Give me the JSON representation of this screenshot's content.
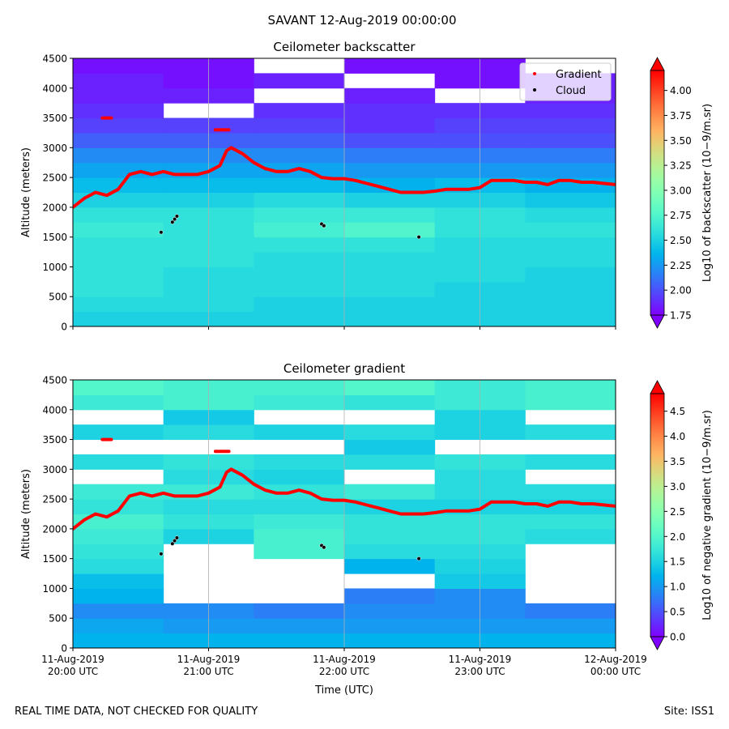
{
  "title": "SAVANT 12-Aug-2019 00:00:00",
  "footer_left": "REAL TIME DATA, NOT CHECKED FOR QUALITY",
  "footer_right": "Site: ISS1",
  "chart_data": [
    {
      "type": "heatmap-scatter",
      "title": "Ceilometer backscatter",
      "ylabel": "Altitude (meters)",
      "xlim": [
        "2019-08-11T20:00",
        "2019-08-12T00:00"
      ],
      "xticks": [
        "2019-08-11T20:00",
        "2019-08-11T21:00",
        "2019-08-11T22:00",
        "2019-08-11T23:00",
        "2019-08-12T00:00"
      ],
      "ylim": [
        0,
        4500
      ],
      "yticks": [
        0,
        500,
        1000,
        1500,
        2000,
        2500,
        3000,
        3500,
        4000,
        4500
      ],
      "grid": "x",
      "colormap": "rainbow",
      "legend": "upper right",
      "colorbar_label": "Log10 of backscatter (10−9/m.sr)",
      "clim": [
        1.75,
        4.2
      ],
      "cticks": [
        {
          "value": 1.75,
          "label": "1.75"
        },
        {
          "value": 2,
          "label": "2.00"
        },
        {
          "value": 2.25,
          "label": "2.25"
        },
        {
          "value": 2.5,
          "label": "2.50"
        },
        {
          "value": 2.75,
          "label": "2.75"
        },
        {
          "value": 3,
          "label": "3.00"
        },
        {
          "value": 3.25,
          "label": "3.25"
        },
        {
          "value": 3.5,
          "label": "3.50"
        },
        {
          "value": 3.75,
          "label": "3.75"
        },
        {
          "value": 4,
          "label": "4.00"
        }
      ],
      "field": {
        "x_edges": [
          "2019-08-11T20:00",
          "2019-08-11T20:40",
          "2019-08-11T21:20",
          "2019-08-11T22:00",
          "2019-08-11T22:40",
          "2019-08-11T23:20",
          "2019-08-12T00:00"
        ],
        "y_edges": [
          0,
          250,
          500,
          750,
          1000,
          1250,
          1500,
          1750,
          2000,
          2250,
          2500,
          2750,
          3000,
          3250,
          3500,
          3750,
          4000,
          4250,
          4500
        ],
        "values": [
          [
            2.5,
            2.5,
            2.5,
            2.5,
            2.5,
            2.5
          ],
          [
            2.55,
            2.55,
            2.5,
            2.5,
            2.5,
            2.5
          ],
          [
            2.6,
            2.55,
            2.55,
            2.55,
            2.5,
            2.5
          ],
          [
            2.6,
            2.55,
            2.55,
            2.55,
            2.55,
            2.5
          ],
          [
            2.6,
            2.6,
            2.55,
            2.55,
            2.55,
            2.55
          ],
          [
            2.6,
            2.6,
            2.6,
            2.6,
            2.55,
            2.55
          ],
          [
            2.65,
            2.6,
            2.7,
            2.75,
            2.6,
            2.6
          ],
          [
            2.6,
            2.6,
            2.65,
            2.65,
            2.6,
            2.55
          ],
          [
            2.5,
            2.5,
            2.55,
            2.5,
            2.5,
            2.45
          ],
          [
            2.4,
            2.4,
            2.4,
            2.35,
            2.4,
            2.35
          ],
          [
            2.3,
            2.3,
            2.3,
            2.25,
            2.25,
            2.25
          ],
          [
            2.2,
            2.2,
            2.2,
            2.15,
            2.15,
            2.15
          ],
          [
            2.05,
            2.05,
            2.05,
            2.0,
            2.0,
            2.0
          ],
          [
            1.95,
            1.95,
            1.95,
            1.9,
            1.95,
            1.95
          ],
          [
            1.9,
            null,
            1.9,
            1.9,
            1.9,
            1.9
          ],
          [
            1.85,
            1.85,
            null,
            1.85,
            null,
            1.85
          ],
          [
            1.85,
            1.8,
            1.85,
            null,
            1.8,
            1.85
          ],
          [
            1.8,
            1.8,
            null,
            1.8,
            1.8,
            null
          ]
        ]
      },
      "series": [
        {
          "name": "Gradient",
          "color": "#ff0000",
          "x": [
            "2019-08-11T20:00",
            "2019-08-11T20:05",
            "2019-08-11T20:10",
            "2019-08-11T20:15",
            "2019-08-11T20:20",
            "2019-08-11T20:25",
            "2019-08-11T20:30",
            "2019-08-11T20:35",
            "2019-08-11T20:40",
            "2019-08-11T20:45",
            "2019-08-11T20:50",
            "2019-08-11T20:55",
            "2019-08-11T21:00",
            "2019-08-11T21:05",
            "2019-08-11T21:08",
            "2019-08-11T21:10",
            "2019-08-11T21:15",
            "2019-08-11T21:20",
            "2019-08-11T21:25",
            "2019-08-11T21:30",
            "2019-08-11T21:35",
            "2019-08-11T21:40",
            "2019-08-11T21:45",
            "2019-08-11T21:50",
            "2019-08-11T21:55",
            "2019-08-11T22:00",
            "2019-08-11T22:05",
            "2019-08-11T22:10",
            "2019-08-11T22:15",
            "2019-08-11T22:20",
            "2019-08-11T22:25",
            "2019-08-11T22:30",
            "2019-08-11T22:35",
            "2019-08-11T22:40",
            "2019-08-11T22:45",
            "2019-08-11T22:50",
            "2019-08-11T22:55",
            "2019-08-11T23:00",
            "2019-08-11T23:05",
            "2019-08-11T23:10",
            "2019-08-11T23:15",
            "2019-08-11T23:20",
            "2019-08-11T23:25",
            "2019-08-11T23:30",
            "2019-08-11T23:35",
            "2019-08-11T23:40",
            "2019-08-11T23:45",
            "2019-08-11T23:50",
            "2019-08-11T23:55",
            "2019-08-12T00:00",
            null,
            "2019-08-11T20:13",
            "2019-08-11T20:17",
            null,
            "2019-08-11T21:03",
            "2019-08-11T21:09"
          ],
          "values": [
            2000,
            2150,
            2250,
            2200,
            2300,
            2550,
            2600,
            2550,
            2600,
            2550,
            2550,
            2550,
            2600,
            2700,
            2950,
            3000,
            2900,
            2750,
            2650,
            2600,
            2600,
            2650,
            2600,
            2500,
            2480,
            2480,
            2450,
            2400,
            2350,
            2300,
            2250,
            2250,
            2250,
            2270,
            2300,
            2300,
            2300,
            2330,
            2450,
            2450,
            2450,
            2420,
            2420,
            2380,
            2450,
            2450,
            2420,
            2420,
            2400,
            2380,
            null,
            3500,
            3500,
            null,
            3300,
            3300
          ]
        },
        {
          "name": "Cloud",
          "color": "#000000",
          "x": [
            "2019-08-11T20:39",
            "2019-08-11T20:44",
            "2019-08-11T20:45",
            "2019-08-11T20:46",
            "2019-08-11T21:50",
            "2019-08-11T21:51",
            "2019-08-11T22:33"
          ],
          "values": [
            1580,
            1750,
            1800,
            1850,
            1720,
            1690,
            1500
          ]
        }
      ]
    },
    {
      "type": "heatmap-scatter",
      "title": "Ceilometer gradient",
      "ylabel": "Altitude (meters)",
      "xlabel": "Time (UTC)",
      "xlim": [
        "2019-08-11T20:00",
        "2019-08-12T00:00"
      ],
      "xticks": [
        {
          "value": "2019-08-11T20:00",
          "label": "11-Aug-2019\n20:00 UTC"
        },
        {
          "value": "2019-08-11T21:00",
          "label": "11-Aug-2019\n21:00 UTC"
        },
        {
          "value": "2019-08-11T22:00",
          "label": "11-Aug-2019\n22:00 UTC"
        },
        {
          "value": "2019-08-11T23:00",
          "label": "11-Aug-2019\n23:00 UTC"
        },
        {
          "value": "2019-08-12T00:00",
          "label": "12-Aug-2019\n00:00 UTC"
        }
      ],
      "ylim": [
        0,
        4500
      ],
      "yticks": [
        0,
        500,
        1000,
        1500,
        2000,
        2500,
        3000,
        3500,
        4000,
        4500
      ],
      "grid": "x",
      "colormap": "rainbow",
      "colorbar_label": "Log10 of negative gradient (10−9/m.sr)",
      "clim": [
        0,
        4.85
      ],
      "cticks": [
        {
          "value": 0,
          "label": "0.0"
        },
        {
          "value": 0.5,
          "label": "0.5"
        },
        {
          "value": 1,
          "label": "1.0"
        },
        {
          "value": 1.5,
          "label": "1.5"
        },
        {
          "value": 2,
          "label": "2.0"
        },
        {
          "value": 2.5,
          "label": "2.5"
        },
        {
          "value": 3,
          "label": "3.0"
        },
        {
          "value": 3.5,
          "label": "3.5"
        },
        {
          "value": 4,
          "label": "4.0"
        },
        {
          "value": 4.5,
          "label": "4.5"
        }
      ],
      "field": {
        "x_edges": [
          "2019-08-11T20:00",
          "2019-08-11T20:40",
          "2019-08-11T21:20",
          "2019-08-11T22:00",
          "2019-08-11T22:40",
          "2019-08-11T23:20",
          "2019-08-12T00:00"
        ],
        "y_edges": [
          0,
          250,
          500,
          750,
          1000,
          1250,
          1500,
          1750,
          2000,
          2250,
          2500,
          2750,
          3000,
          3250,
          3500,
          3750,
          4000,
          4250,
          4500
        ],
        "values": [
          [
            1.2,
            1.2,
            1.2,
            1.2,
            1.2,
            1.2
          ],
          [
            1.1,
            1.0,
            1.0,
            1.0,
            1.0,
            1.0
          ],
          [
            0.9,
            0.9,
            0.8,
            0.9,
            0.9,
            0.8
          ],
          [
            1.2,
            null,
            null,
            0.8,
            0.9,
            null
          ],
          [
            1.3,
            null,
            null,
            null,
            1.4,
            null
          ],
          [
            1.6,
            null,
            null,
            1.2,
            1.5,
            null
          ],
          [
            1.7,
            null,
            1.9,
            1.6,
            1.6,
            null
          ],
          [
            1.8,
            1.5,
            1.9,
            1.7,
            1.7,
            1.6
          ],
          [
            1.9,
            1.7,
            1.8,
            1.7,
            1.7,
            1.7
          ],
          [
            1.7,
            1.6,
            1.6,
            1.5,
            1.5,
            1.5
          ],
          [
            1.8,
            1.8,
            1.7,
            1.8,
            1.6,
            1.6
          ],
          [
            null,
            1.6,
            1.5,
            null,
            1.6,
            null
          ],
          [
            1.6,
            1.7,
            1.6,
            1.6,
            1.7,
            1.6
          ],
          [
            null,
            null,
            null,
            1.4,
            null,
            null
          ],
          [
            1.5,
            1.6,
            1.5,
            1.6,
            1.5,
            1.6
          ],
          [
            null,
            1.4,
            null,
            null,
            1.5,
            null
          ],
          [
            1.8,
            1.9,
            1.8,
            1.7,
            1.8,
            1.9
          ],
          [
            2.0,
            1.9,
            1.9,
            2.0,
            1.8,
            1.9
          ]
        ]
      },
      "series": [
        {
          "name": "Gradient",
          "color": "#ff0000",
          "x": [
            "2019-08-11T20:00",
            "2019-08-11T20:05",
            "2019-08-11T20:10",
            "2019-08-11T20:15",
            "2019-08-11T20:20",
            "2019-08-11T20:25",
            "2019-08-11T20:30",
            "2019-08-11T20:35",
            "2019-08-11T20:40",
            "2019-08-11T20:45",
            "2019-08-11T20:50",
            "2019-08-11T20:55",
            "2019-08-11T21:00",
            "2019-08-11T21:05",
            "2019-08-11T21:08",
            "2019-08-11T21:10",
            "2019-08-11T21:15",
            "2019-08-11T21:20",
            "2019-08-11T21:25",
            "2019-08-11T21:30",
            "2019-08-11T21:35",
            "2019-08-11T21:40",
            "2019-08-11T21:45",
            "2019-08-11T21:50",
            "2019-08-11T21:55",
            "2019-08-11T22:00",
            "2019-08-11T22:05",
            "2019-08-11T22:10",
            "2019-08-11T22:15",
            "2019-08-11T22:20",
            "2019-08-11T22:25",
            "2019-08-11T22:30",
            "2019-08-11T22:35",
            "2019-08-11T22:40",
            "2019-08-11T22:45",
            "2019-08-11T22:50",
            "2019-08-11T22:55",
            "2019-08-11T23:00",
            "2019-08-11T23:05",
            "2019-08-11T23:10",
            "2019-08-11T23:15",
            "2019-08-11T23:20",
            "2019-08-11T23:25",
            "2019-08-11T23:30",
            "2019-08-11T23:35",
            "2019-08-11T23:40",
            "2019-08-11T23:45",
            "2019-08-11T23:50",
            "2019-08-11T23:55",
            "2019-08-12T00:00",
            null,
            "2019-08-11T20:13",
            "2019-08-11T20:17",
            null,
            "2019-08-11T21:03",
            "2019-08-11T21:09"
          ],
          "values": [
            2000,
            2150,
            2250,
            2200,
            2300,
            2550,
            2600,
            2550,
            2600,
            2550,
            2550,
            2550,
            2600,
            2700,
            2950,
            3000,
            2900,
            2750,
            2650,
            2600,
            2600,
            2650,
            2600,
            2500,
            2480,
            2480,
            2450,
            2400,
            2350,
            2300,
            2250,
            2250,
            2250,
            2270,
            2300,
            2300,
            2300,
            2330,
            2450,
            2450,
            2450,
            2420,
            2420,
            2380,
            2450,
            2450,
            2420,
            2420,
            2400,
            2380,
            null,
            3500,
            3500,
            null,
            3300,
            3300
          ]
        },
        {
          "name": "Cloud",
          "color": "#000000",
          "x": [
            "2019-08-11T20:39",
            "2019-08-11T20:44",
            "2019-08-11T20:45",
            "2019-08-11T20:46",
            "2019-08-11T21:50",
            "2019-08-11T21:51",
            "2019-08-11T22:33"
          ],
          "values": [
            1580,
            1750,
            1800,
            1850,
            1720,
            1690,
            1500
          ]
        }
      ]
    }
  ]
}
